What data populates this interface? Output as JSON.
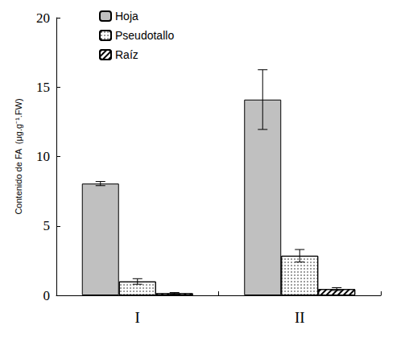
{
  "chart_data": {
    "type": "bar",
    "y_label": "Contenido de FA  (μg.g⁻¹.FW)",
    "categories": [
      "I",
      "II"
    ],
    "series": [
      {
        "name": "Hoja",
        "color": "#c0c0c0",
        "values": [
          8.05,
          14.1
        ],
        "errors": [
          0.15,
          2.15
        ]
      },
      {
        "name": "Pseudotallo",
        "color": "#ffffff",
        "values": [
          1.0,
          2.85
        ],
        "errors": [
          0.2,
          0.45
        ]
      },
      {
        "name": "Raíz",
        "color": "#ffffff",
        "values": [
          0.15,
          0.45
        ],
        "errors": [
          0.05,
          0.1
        ]
      }
    ],
    "ylim": [
      0,
      20
    ],
    "yticks": [
      0,
      5,
      10,
      15,
      20
    ],
    "grid": false,
    "legend": "upper left"
  }
}
